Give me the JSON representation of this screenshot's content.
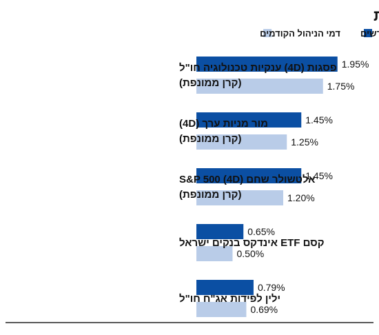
{
  "title": "התייקרות דו־ספרתית גם בשאר קרנות הנאמנות",
  "chart_data": {
    "type": "bar",
    "orientation": "horizontal",
    "direction": "rtl",
    "categories": [
      [
        "פסגות (4D) ענקיות טכנולוגיה חו\"ל",
        "(קרן ממונפת)"
      ],
      [
        "מור מניות ערך (4D)",
        "(קרן ממונפת)"
      ],
      [
        "אלטשולר שחם S&P 500 (4D)",
        "(קרן ממונפת)"
      ],
      [
        "קסם ETF אינדקס בנקים ישראל"
      ],
      [
        "ילין לפידות אג\"ח חו\"ל"
      ]
    ],
    "series": [
      {
        "name": "דמי הניהול החדשים",
        "values": [
          1.95,
          1.45,
          1.45,
          0.65,
          0.79
        ],
        "labels": [
          "1.95%",
          "1.45%",
          "1.45%",
          "0.65%",
          "0.79%"
        ],
        "color": "#0b4fa3"
      },
      {
        "name": "דמי הניהול הקודמים",
        "values": [
          1.75,
          1.25,
          1.2,
          0.5,
          0.69
        ],
        "labels": [
          "1.75%",
          "1.25%",
          "1.20%",
          "0.50%",
          "0.69%"
        ],
        "color": "#b9cce8"
      }
    ],
    "xlim": [
      0,
      2.0
    ],
    "grid": false,
    "legend_position": "top-right"
  }
}
